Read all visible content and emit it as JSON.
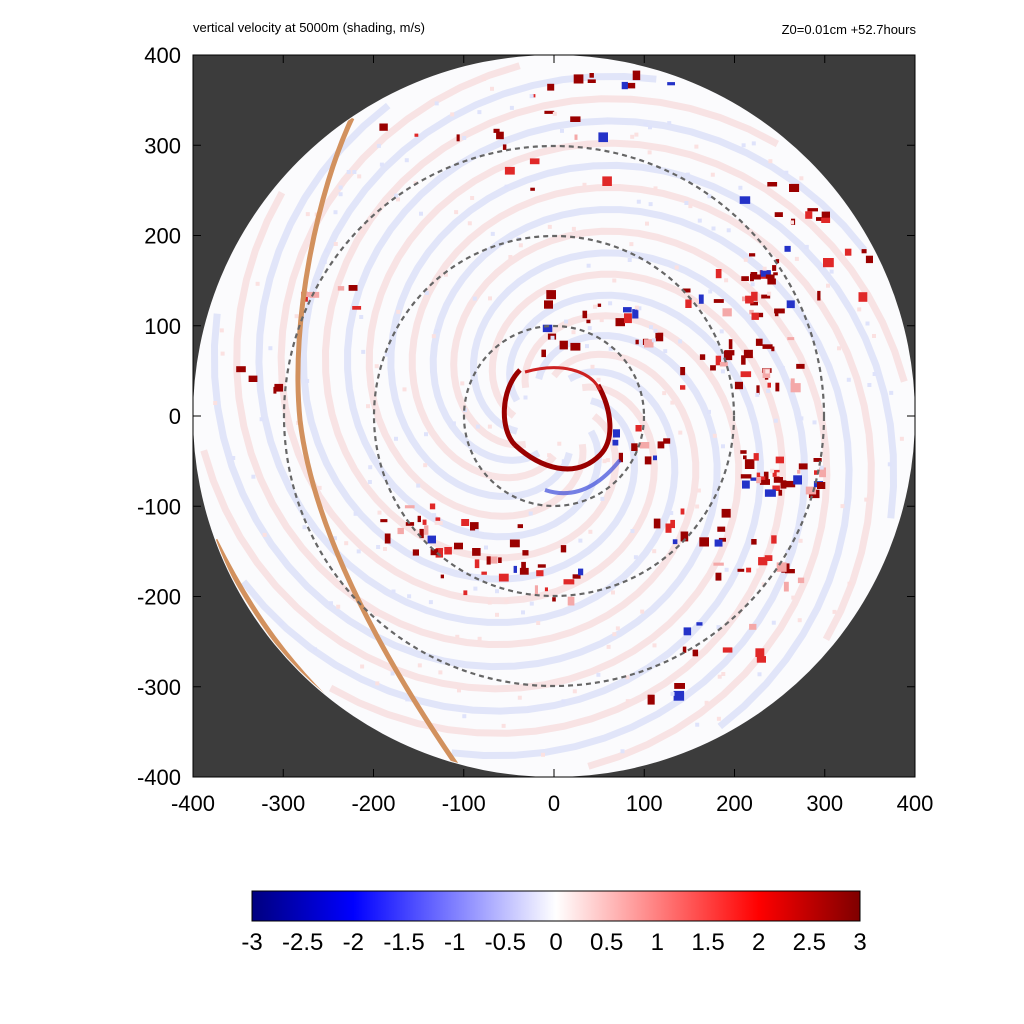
{
  "chart_data": {
    "type": "heatmap",
    "title": "vertical velocity at 5000m (shading, m/s)",
    "info": "Z0=0.01cm  +52.7hours",
    "xlim": [
      -400,
      400
    ],
    "ylim": [
      -400,
      400
    ],
    "x_ticks": [
      "-400",
      "-300",
      "-200",
      "-100",
      "0",
      "100",
      "200",
      "300",
      "400"
    ],
    "y_ticks": [
      "400",
      "300",
      "200",
      "100",
      "0",
      "-100",
      "-200",
      "-300",
      "-400"
    ],
    "domain_radius": 400,
    "range_rings": [
      100,
      200,
      300
    ],
    "colorbar": {
      "min": -3,
      "max": 3,
      "ticks": [
        "-3",
        "-2.5",
        "-2",
        "-1.5",
        "-1",
        "-0.5",
        "0",
        "0.5",
        "1",
        "1.5",
        "2",
        "2.5",
        "3"
      ],
      "colors": [
        "#00007f",
        "#0000ff",
        "#ffffff",
        "#ff0000",
        "#7f0000"
      ]
    },
    "colors": {
      "outside_domain": "#3c3c3c",
      "coastline": "#d2915e",
      "rings": "#666666"
    }
  }
}
